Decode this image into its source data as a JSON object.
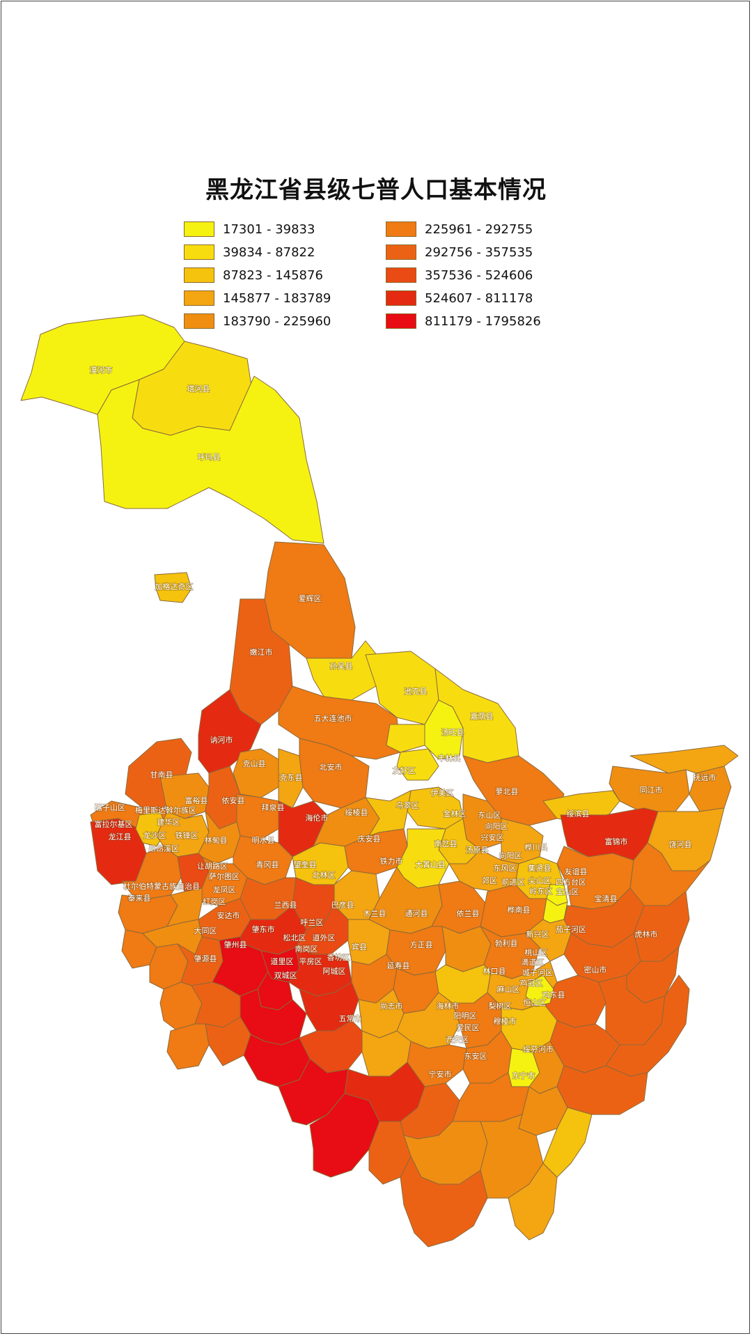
{
  "title": "黑龙江省县级七普人口基本情况",
  "legend": [
    {
      "range": "17301 - 39833",
      "color": "#f5f212"
    },
    {
      "range": "39834 - 87822",
      "color": "#f7dd10"
    },
    {
      "range": "87823 - 145876",
      "color": "#f5c20e"
    },
    {
      "range": "145877 - 183789",
      "color": "#f4a512"
    },
    {
      "range": "183790 - 225960",
      "color": "#f08e12"
    },
    {
      "range": "225961 - 292755",
      "color": "#f07a14"
    },
    {
      "range": "292756 - 357535",
      "color": "#ec6215"
    },
    {
      "range": "357536 - 524606",
      "color": "#ea4a14"
    },
    {
      "range": "524607 - 811178",
      "color": "#e52a12"
    },
    {
      "range": "811179 - 1795826",
      "color": "#e80c14"
    }
  ],
  "regions": [
    "漠河市",
    "塔河县",
    "呼玛县",
    "加格达奇区",
    "爱辉区",
    "嫩江市",
    "孙吴县",
    "逊克县",
    "五大连池市",
    "汤旺县",
    "嘉荫县",
    "讷河市",
    "克山县",
    "克东县",
    "北安市",
    "丰林县",
    "甘南县",
    "友好区",
    "萝北县",
    "同江市",
    "抚远市",
    "富裕县",
    "依安县",
    "拜泉县",
    "乌翠区",
    "伊美区",
    "碾子山区",
    "梅里斯达斡尔族区",
    "海伦市",
    "绥棱县",
    "金林区",
    "东山区",
    "绥滨县",
    "富锦市",
    "饶河县",
    "富拉尔基区",
    "建华区",
    "龙沙区",
    "铁锋区",
    "向阳区",
    "兴安区",
    "桦川县",
    "龙江县",
    "昂昂溪区",
    "林甸县",
    "明水县",
    "庆安县",
    "铁力市",
    "南岔县",
    "汤原县",
    "向阳区",
    "集贤县",
    "友谊县",
    "东风区",
    "前进区",
    "郊区",
    "尖山区",
    "四方台区",
    "宝山区",
    "让胡路区",
    "青冈县",
    "望奎县",
    "北林区",
    "大箐山县",
    "岭东区",
    "宝清县",
    "杜尔伯特蒙古族自治县",
    "泰来县",
    "萨尔图区",
    "龙凤区",
    "红岗区",
    "兰西县",
    "巴彦县",
    "木兰县",
    "通河县",
    "依兰县",
    "桦南县",
    "安达市",
    "呼兰区",
    "大同区",
    "肇东市",
    "松北区",
    "道外区",
    "新兴区",
    "茄子河区",
    "虎林市",
    "肇州县",
    "南岗区",
    "宾县",
    "勃利县",
    "桃山区",
    "道里区",
    "平房区",
    "香坊区",
    "方正县",
    "滴道区",
    "城子河区",
    "密山市",
    "肇源县",
    "双城区",
    "阿城区",
    "延寿县",
    "林口县",
    "麻山区",
    "鸡冠区",
    "恒山区",
    "梨树区",
    "鸡东县",
    "尚志市",
    "海林市",
    "阳明区",
    "爱民区",
    "穆棱市",
    "五常市",
    "西安区",
    "东安区",
    "绥芬河市",
    "宁安市",
    "东宁市"
  ]
}
